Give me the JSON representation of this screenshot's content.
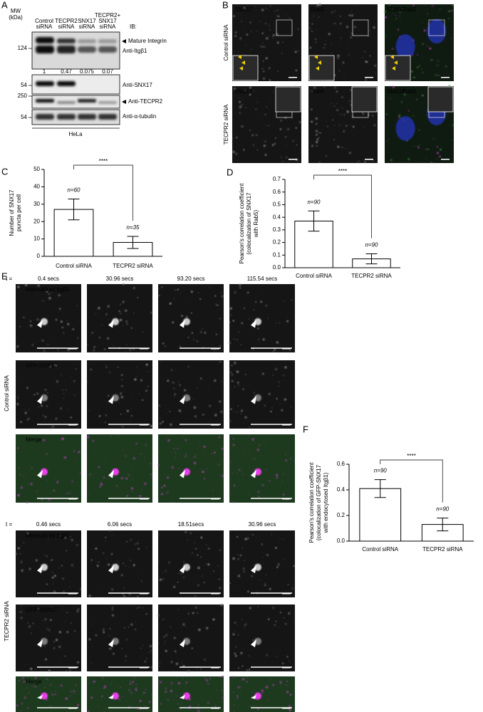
{
  "panel_labels": [
    "A",
    "B",
    "C",
    "D",
    "E",
    "F"
  ],
  "blot": {
    "mw_header": [
      "MW",
      "(kDa)"
    ],
    "lanes": [
      [
        "Control",
        "siRNA"
      ],
      [
        "TECPR2",
        "siRNA"
      ],
      [
        "SNX17",
        "siRNA"
      ],
      [
        "TECPR2+",
        "SNX17",
        "siRNA"
      ]
    ],
    "ib": "IB:",
    "mw_markers": [
      "124",
      "54",
      "250",
      "54"
    ],
    "band_labels": [
      "Mature Integrin",
      "Anti-Itgβ1",
      "Anti-SNX17",
      "Anti-TECPR2",
      "Anti-α-tubulin"
    ],
    "quantification": [
      "1",
      "0.47",
      "0.075",
      "0.07"
    ],
    "cell_line": "HeLa"
  },
  "microscopy": {
    "channels": [
      "SNX17",
      "Rab5"
    ],
    "merge": [
      "SNX17",
      "/Rab5"
    ],
    "rows": [
      "Control siRNA",
      "TECPR2 siRNA"
    ]
  },
  "live_imaging": {
    "t_label": "t =",
    "control_times": [
      "0.4 secs",
      "30.96 secs",
      "93.20 secs",
      "115.54 secs"
    ],
    "tecpr2_times": [
      "0.46 secs",
      "6.06 secs",
      "18.51secs",
      "30.96 secs"
    ],
    "channels": [
      "Internalized Itgβ1",
      "GFP-SNX17",
      "Merge"
    ],
    "rows": [
      "Control siRNA",
      "TECPR2 siRNA"
    ]
  },
  "chart_data": [
    {
      "type": "bar",
      "ylabel": [
        "Number of SNX17",
        "puncta per cell"
      ],
      "categories": [
        "Control siRNA",
        "TECPR2 siRNA"
      ],
      "values": [
        27,
        8
      ],
      "errors": [
        6,
        3.5
      ],
      "n_labels": [
        "n=60",
        "n=35"
      ],
      "significance": "****",
      "ylim": [
        0,
        50
      ],
      "yticks": [
        0,
        10,
        20,
        30,
        40,
        50
      ]
    },
    {
      "type": "bar",
      "ylabel": [
        "Pearson's correlation coefficient",
        "(colocalization of SNX17",
        "with Rab5)"
      ],
      "categories": [
        "Control siRNA",
        "TECPR2 siRNA"
      ],
      "values": [
        0.37,
        0.07
      ],
      "errors": [
        0.08,
        0.04
      ],
      "n_labels": [
        "n=90",
        "n=90"
      ],
      "significance": "****",
      "ylim": [
        0,
        0.7
      ],
      "yticks": [
        {
          "value": 0,
          "label": "0.0"
        },
        0.1,
        0.2,
        0.3,
        0.4,
        0.5,
        0.6,
        0.7
      ]
    },
    {
      "type": "bar",
      "ylabel": [
        "Pearson's correlation coefficient",
        "(colocalization of GFP-SNX17",
        "with endocytosed Itgβ1)"
      ],
      "categories": [
        "Control siRNA",
        "TECPR2 siRNA"
      ],
      "values": [
        0.41,
        0.13
      ],
      "errors": [
        0.07,
        0.05
      ],
      "n_labels": [
        "n=90",
        "n=90"
      ],
      "significance": "****",
      "ylim": [
        0,
        0.6
      ],
      "yticks": [
        {
          "value": 0,
          "label": "0.0"
        },
        0.2,
        0.4,
        0.6
      ]
    }
  ]
}
